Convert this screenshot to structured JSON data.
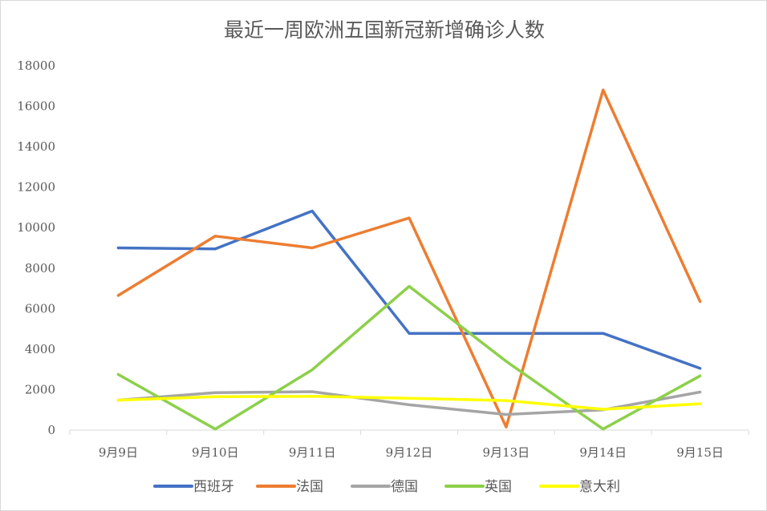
{
  "chart_data": {
    "type": "line",
    "title": "最近一周欧洲五国新冠新增确诊人数",
    "xlabel": "",
    "ylabel": "",
    "categories": [
      "9月9日",
      "9月10日",
      "9月11日",
      "9月12日",
      "9月13日",
      "9月14日",
      "9月15日"
    ],
    "ylim": [
      0,
      18000
    ],
    "yticks": [
      0,
      2000,
      4000,
      6000,
      8000,
      10000,
      12000,
      14000,
      16000,
      18000
    ],
    "grid": false,
    "legend_position": "bottom",
    "series": [
      {
        "name": "西班牙",
        "color": "#4472C4",
        "values": [
          9000,
          8950,
          10820,
          4780,
          4780,
          4780,
          3050
        ]
      },
      {
        "name": "法国",
        "color": "#ED7D31",
        "values": [
          6650,
          9580,
          9000,
          10480,
          150,
          16800,
          6350
        ]
      },
      {
        "name": "德国",
        "color": "#A5A5A5",
        "values": [
          1480,
          1850,
          1900,
          1250,
          770,
          1000,
          1880
        ]
      },
      {
        "name": "英国",
        "color": "#8CD04A",
        "values": [
          2750,
          50,
          2980,
          7100,
          3400,
          50,
          2680
        ]
      },
      {
        "name": "意大利",
        "color": "#FFFF00",
        "values": [
          1480,
          1650,
          1670,
          1570,
          1460,
          1030,
          1300
        ]
      }
    ]
  }
}
